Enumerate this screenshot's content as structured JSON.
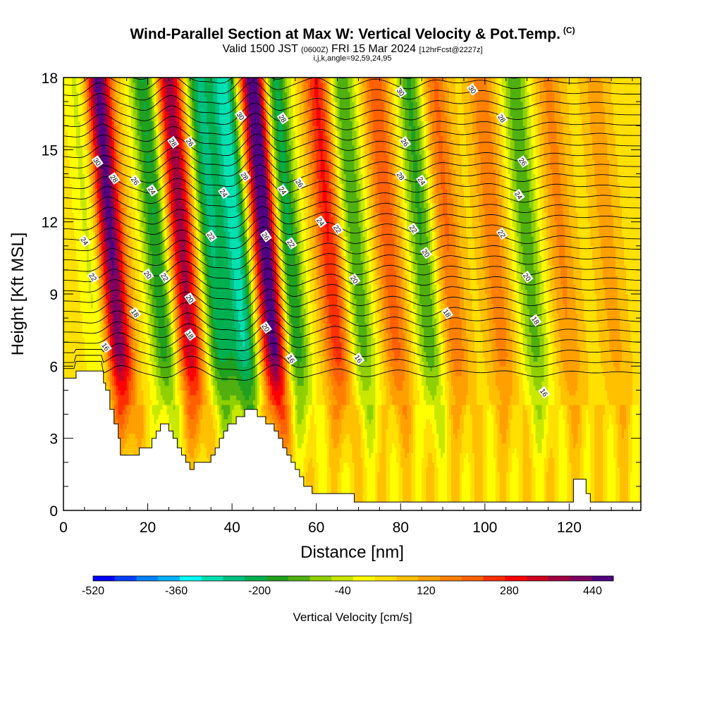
{
  "header": {
    "title": "Wind-Parallel Section at Max W: Vertical Velocity & Pot.Temp.",
    "copyright": "(C)",
    "valid_main": "Valid 1500 JST",
    "valid_utc": "(0600Z)",
    "valid_date": "FRI 15 Mar 2024",
    "forecast": "[12hrFcst@2227z]",
    "indices": "i,j,k,angle=92,59,24,95"
  },
  "chart_data": {
    "type": "heatmap",
    "xlabel": "Distance [nm]",
    "ylabel": "Height [Kft MSL]",
    "xlim": [
      0,
      137
    ],
    "ylim": [
      0,
      18
    ],
    "x_ticks": [
      0,
      20,
      40,
      60,
      80,
      100,
      120
    ],
    "y_ticks": [
      0,
      3,
      6,
      9,
      12,
      15,
      18
    ],
    "colorbar": {
      "title": "Vertical Velocity [cm/s]",
      "min": -520,
      "max": 480,
      "step": 40,
      "tick_labels": [
        "-520",
        "-360",
        "-200",
        "-40",
        "120",
        "280",
        "440"
      ],
      "tick_values": [
        -520,
        -360,
        -200,
        -40,
        120,
        280,
        440
      ],
      "colors": [
        "#0000ff",
        "#0040ff",
        "#0080ff",
        "#00b0ff",
        "#00ffff",
        "#00e0b0",
        "#00c080",
        "#00b050",
        "#20a020",
        "#50b010",
        "#90d000",
        "#c8e800",
        "#ffff00",
        "#ffe000",
        "#ffc000",
        "#ffa000",
        "#ff8000",
        "#ff6000",
        "#ff3000",
        "#ff0000",
        "#d00020",
        "#a00040",
        "#800060",
        "#500080"
      ]
    },
    "updrafts": [
      {
        "x": 12,
        "w": 420
      },
      {
        "x": 29,
        "w": 340
      },
      {
        "x": 49,
        "w": 470
      },
      {
        "x": 64,
        "w": 230
      },
      {
        "x": 78,
        "w": 170
      },
      {
        "x": 92,
        "w": 150
      },
      {
        "x": 103,
        "w": 130
      },
      {
        "x": 119,
        "w": 110
      },
      {
        "x": 130,
        "w": 80
      }
    ],
    "downdrafts": [
      {
        "x": 8,
        "w": -110
      },
      {
        "x": 23,
        "w": -230
      },
      {
        "x": 36,
        "w": -260
      },
      {
        "x": 42,
        "w": -330
      },
      {
        "x": 54,
        "w": -260
      },
      {
        "x": 70,
        "w": -180
      },
      {
        "x": 86,
        "w": -190
      },
      {
        "x": 111,
        "w": -170
      }
    ],
    "theta_contour_labels": [
      {
        "x": 8,
        "y": 14.5,
        "text": "30"
      },
      {
        "x": 12,
        "y": 13.8,
        "text": "28"
      },
      {
        "x": 17,
        "y": 13.7,
        "text": "26"
      },
      {
        "x": 21,
        "y": 13.3,
        "text": "24"
      },
      {
        "x": 26,
        "y": 15.3,
        "text": "28"
      },
      {
        "x": 30,
        "y": 15.3,
        "text": "26"
      },
      {
        "x": 5,
        "y": 11.2,
        "text": "24"
      },
      {
        "x": 7,
        "y": 9.7,
        "text": "22"
      },
      {
        "x": 20,
        "y": 9.8,
        "text": "20"
      },
      {
        "x": 24,
        "y": 9.7,
        "text": "22"
      },
      {
        "x": 17,
        "y": 8.2,
        "text": "18"
      },
      {
        "x": 10,
        "y": 6.8,
        "text": "16"
      },
      {
        "x": 30,
        "y": 8.8,
        "text": "20"
      },
      {
        "x": 30,
        "y": 7.3,
        "text": "18"
      },
      {
        "x": 35,
        "y": 11.4,
        "text": "22"
      },
      {
        "x": 38,
        "y": 13.2,
        "text": "24"
      },
      {
        "x": 42,
        "y": 16.4,
        "text": "30"
      },
      {
        "x": 43,
        "y": 13.9,
        "text": "28"
      },
      {
        "x": 48,
        "y": 11.4,
        "text": "26"
      },
      {
        "x": 48,
        "y": 7.6,
        "text": "20"
      },
      {
        "x": 52,
        "y": 16.3,
        "text": "28"
      },
      {
        "x": 52,
        "y": 13.3,
        "text": "24"
      },
      {
        "x": 56,
        "y": 13.6,
        "text": "26"
      },
      {
        "x": 54,
        "y": 11.1,
        "text": "22"
      },
      {
        "x": 54,
        "y": 6.3,
        "text": "16"
      },
      {
        "x": 61,
        "y": 12.0,
        "text": "24"
      },
      {
        "x": 65,
        "y": 11.7,
        "text": "22"
      },
      {
        "x": 69,
        "y": 9.6,
        "text": "20"
      },
      {
        "x": 70,
        "y": 6.3,
        "text": "16"
      },
      {
        "x": 80,
        "y": 17.4,
        "text": "30"
      },
      {
        "x": 81,
        "y": 15.3,
        "text": "26"
      },
      {
        "x": 80,
        "y": 13.9,
        "text": "28"
      },
      {
        "x": 85,
        "y": 13.7,
        "text": "24"
      },
      {
        "x": 83,
        "y": 11.7,
        "text": "22"
      },
      {
        "x": 86,
        "y": 10.7,
        "text": "20"
      },
      {
        "x": 91,
        "y": 8.2,
        "text": "18"
      },
      {
        "x": 97,
        "y": 17.5,
        "text": "30"
      },
      {
        "x": 104,
        "y": 16.3,
        "text": "28"
      },
      {
        "x": 109,
        "y": 14.5,
        "text": "26"
      },
      {
        "x": 108,
        "y": 13.1,
        "text": "24"
      },
      {
        "x": 104,
        "y": 11.5,
        "text": "22"
      },
      {
        "x": 110,
        "y": 9.7,
        "text": "20"
      },
      {
        "x": 112,
        "y": 7.9,
        "text": "18"
      },
      {
        "x": 114,
        "y": 4.9,
        "text": "16"
      }
    ]
  }
}
